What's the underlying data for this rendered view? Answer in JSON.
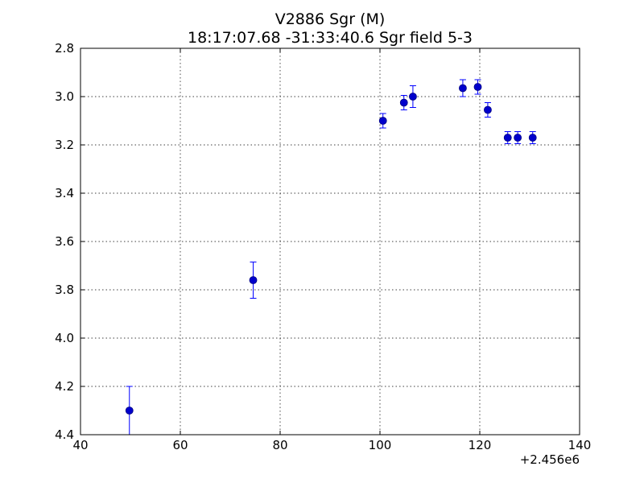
{
  "chart_data": {
    "type": "scatter",
    "title": "V2886 Sgr  (M)",
    "subtitle": "18:17:07.68 -31:33:40.6 Sgr field 5-3",
    "x_offset_label": "+2.456e6",
    "xlim": [
      40,
      140
    ],
    "ylim": [
      4.4,
      2.8
    ],
    "y_inverted": true,
    "grid": true,
    "x_ticks": [
      40,
      60,
      80,
      100,
      120,
      140
    ],
    "x_tick_labels": [
      "40",
      "60",
      "80",
      "100",
      "120",
      "140"
    ],
    "y_ticks": [
      2.8,
      3.0,
      3.2,
      3.4,
      3.6,
      3.8,
      4.0,
      4.2,
      4.4
    ],
    "y_tick_labels": [
      "2.8",
      "3.0",
      "3.2",
      "3.4",
      "3.6",
      "3.8",
      "4.0",
      "4.2",
      "4.4"
    ],
    "marker_color": "#0000cc",
    "errorbar_color": "#0000ff",
    "points": [
      {
        "x": 49.8,
        "y": 4.3,
        "err": 0.1
      },
      {
        "x": 74.6,
        "y": 3.76,
        "err": 0.075
      },
      {
        "x": 100.6,
        "y": 3.1,
        "err": 0.03
      },
      {
        "x": 104.8,
        "y": 3.025,
        "err": 0.03
      },
      {
        "x": 106.6,
        "y": 3.0,
        "err": 0.045
      },
      {
        "x": 116.6,
        "y": 2.965,
        "err": 0.035
      },
      {
        "x": 119.6,
        "y": 2.96,
        "err": 0.03
      },
      {
        "x": 121.6,
        "y": 3.055,
        "err": 0.03
      },
      {
        "x": 125.6,
        "y": 3.17,
        "err": 0.025
      },
      {
        "x": 127.6,
        "y": 3.17,
        "err": 0.025
      },
      {
        "x": 130.6,
        "y": 3.17,
        "err": 0.025
      }
    ]
  }
}
